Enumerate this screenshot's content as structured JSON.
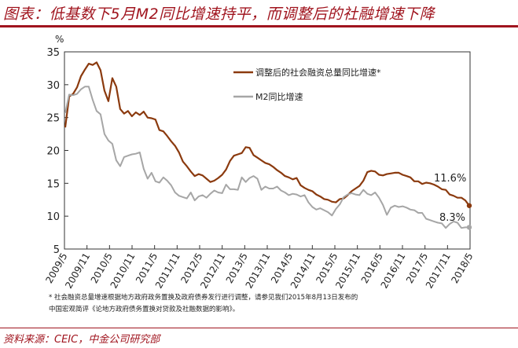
{
  "title": "图表：低基数下5月M2同比增速持平，而调整后的社融增速下降",
  "unit": "%",
  "footnote_lines": [
    "* 社会融资总量增速根据地方政府政务置换及政府债券发行进行调整，请参见我们2015年8月13日发布的",
    "中国宏观简评《论地方政府债务置换对贷款及社融数据的影响》。"
  ],
  "source": "资料来源：CEIC，中金公司研究部",
  "colors": {
    "tsf": "#8b3a0e",
    "m2": "#a6a6a6",
    "accent": "#a0141e"
  },
  "chart_data": {
    "type": "line",
    "xlabel": "",
    "ylabel": "%",
    "ylim": [
      5,
      35
    ],
    "yticks": [
      "5",
      "10",
      "15",
      "20",
      "25",
      "30",
      "35"
    ],
    "xticks": [
      "2009/5",
      "2009/11",
      "2010/5",
      "2010/11",
      "2011/5",
      "2011/11",
      "2012/5",
      "2012/11",
      "2013/5",
      "2013/11",
      "2014/5",
      "2014/11",
      "2015/5",
      "2015/11",
      "2016/5",
      "2016/11",
      "2017/5",
      "2017/11",
      "2018/5"
    ],
    "legend": [
      "调整后的社会融资总量同比增速*",
      "M2同比增速"
    ],
    "annotations": [
      {
        "label": "11.6%",
        "series": 0
      },
      {
        "label": "8.3%",
        "series": 1
      }
    ],
    "series": [
      {
        "name": "调整后的社会融资总量同比增速*",
        "values": [
          23.5,
          28.2,
          28.6,
          29.6,
          31.3,
          32.3,
          33.2,
          33.0,
          33.4,
          32.2,
          29.1,
          27.5,
          31.0,
          29.7,
          26.3,
          25.6,
          26.0,
          25.2,
          25.8,
          25.4,
          25.9,
          25.0,
          24.9,
          24.7,
          23.1,
          22.9,
          22.2,
          21.4,
          20.7,
          19.7,
          18.3,
          17.6,
          16.8,
          16.1,
          16.4,
          16.2,
          15.7,
          15.2,
          15.4,
          15.8,
          16.3,
          17.1,
          18.4,
          19.2,
          19.4,
          19.6,
          20.5,
          20.4,
          19.3,
          18.9,
          18.5,
          18.1,
          17.9,
          17.5,
          17.0,
          16.6,
          16.1,
          15.9,
          15.6,
          15.8,
          14.7,
          14.3,
          14.0,
          13.8,
          13.3,
          13.0,
          12.6,
          12.5,
          12.2,
          12.1,
          12.6,
          12.7,
          13.2,
          13.8,
          14.2,
          14.6,
          15.4,
          16.7,
          16.9,
          16.8,
          16.3,
          16.2,
          16.4,
          16.5,
          16.6,
          16.6,
          16.3,
          16.1,
          15.9,
          15.3,
          15.3,
          14.9,
          15.1,
          15.0,
          14.8,
          14.5,
          14.1,
          14.0,
          13.3,
          13.1,
          12.8,
          12.8,
          12.4,
          11.6
        ]
      },
      {
        "name": "M2同比增速",
        "values": [
          25.7,
          28.5,
          28.4,
          28.6,
          29.3,
          29.7,
          29.7,
          27.7,
          26.0,
          25.5,
          22.5,
          21.5,
          21.0,
          18.5,
          17.6,
          19.0,
          19.2,
          19.4,
          19.5,
          19.7,
          17.2,
          15.7,
          16.6,
          15.3,
          15.1,
          15.9,
          15.4,
          14.7,
          13.6,
          13.1,
          12.9,
          12.7,
          13.6,
          12.4,
          13.0,
          13.2,
          12.8,
          13.4,
          13.9,
          13.6,
          13.5,
          14.8,
          14.1,
          14.1,
          14.0,
          15.9,
          15.2,
          15.8,
          16.1,
          15.7,
          14.0,
          14.5,
          14.2,
          14.2,
          14.5,
          13.9,
          13.6,
          13.2,
          13.4,
          13.3,
          13.0,
          13.2,
          12.1,
          11.4,
          11.0,
          11.2,
          10.9,
          10.6,
          10.1,
          11.1,
          11.8,
          12.9,
          13.3,
          13.5,
          13.3,
          13.2,
          14.0,
          13.4,
          13.2,
          13.6,
          12.8,
          11.7,
          10.2,
          11.3,
          11.6,
          11.4,
          11.5,
          11.3,
          11.0,
          10.9,
          10.5,
          10.5,
          9.6,
          9.4,
          9.2,
          9.0,
          8.9,
          8.2,
          8.8,
          9.2,
          9.0,
          8.2,
          8.3,
          8.3
        ]
      }
    ]
  }
}
